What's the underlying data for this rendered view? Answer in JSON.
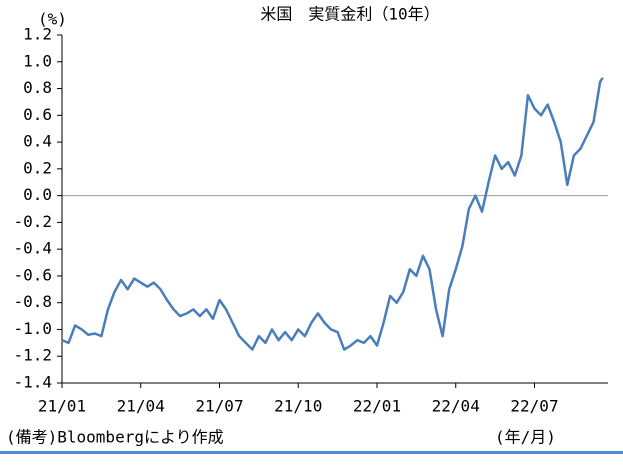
{
  "chart_data": {
    "type": "line",
    "title": "米国　実質金利（10年）",
    "y_label": "(%)",
    "x_label": "(年/月)",
    "source": "(備考)Bloombergにより作成",
    "x": [
      0,
      0.25,
      0.5,
      0.75,
      1,
      1.25,
      1.5,
      1.75,
      2,
      2.25,
      2.5,
      2.75,
      3,
      3.25,
      3.5,
      3.75,
      4,
      4.25,
      4.5,
      4.75,
      5,
      5.25,
      5.5,
      5.75,
      6,
      6.25,
      6.5,
      6.75,
      7,
      7.25,
      7.5,
      7.75,
      8,
      8.25,
      8.5,
      8.75,
      9,
      9.25,
      9.5,
      9.75,
      10,
      10.25,
      10.5,
      10.75,
      11,
      11.25,
      11.5,
      11.75,
      12,
      12.25,
      12.5,
      12.75,
      13,
      13.25,
      13.5,
      13.75,
      14,
      14.25,
      14.5,
      14.75,
      15,
      15.25,
      15.5,
      15.75,
      16,
      16.25,
      16.5,
      16.75,
      17,
      17.25,
      17.5,
      17.75,
      18,
      18.25,
      18.5,
      18.75,
      19,
      19.25,
      19.5,
      19.75,
      20,
      20.25,
      20.5,
      20.6
    ],
    "series": [
      {
        "name": "実質金利",
        "color": "#4a7ebb",
        "values": [
          -1.08,
          -1.1,
          -0.97,
          -1.0,
          -1.04,
          -1.03,
          -1.05,
          -0.85,
          -0.72,
          -0.63,
          -0.7,
          -0.62,
          -0.65,
          -0.68,
          -0.65,
          -0.7,
          -0.78,
          -0.85,
          -0.9,
          -0.88,
          -0.85,
          -0.9,
          -0.85,
          -0.92,
          -0.78,
          -0.85,
          -0.95,
          -1.05,
          -1.1,
          -1.15,
          -1.05,
          -1.1,
          -1.0,
          -1.08,
          -1.02,
          -1.08,
          -1.0,
          -1.05,
          -0.95,
          -0.88,
          -0.95,
          -1.0,
          -1.02,
          -1.15,
          -1.12,
          -1.08,
          -1.1,
          -1.05,
          -1.12,
          -0.95,
          -0.75,
          -0.8,
          -0.72,
          -0.55,
          -0.6,
          -0.45,
          -0.55,
          -0.85,
          -1.05,
          -0.7,
          -0.55,
          -0.38,
          -0.1,
          0.0,
          -0.12,
          0.1,
          0.3,
          0.2,
          0.25,
          0.15,
          0.3,
          0.75,
          0.65,
          0.6,
          0.68,
          0.55,
          0.4,
          0.08,
          0.3,
          0.35,
          0.45,
          0.55,
          0.85,
          0.88
        ]
      }
    ],
    "xlim": [
      0,
      20.8
    ],
    "xticks": [
      {
        "value": 0,
        "label": "21/01"
      },
      {
        "value": 3,
        "label": "21/04"
      },
      {
        "value": 6,
        "label": "21/07"
      },
      {
        "value": 9,
        "label": "21/10"
      },
      {
        "value": 12,
        "label": "22/01"
      },
      {
        "value": 15,
        "label": "22/04"
      },
      {
        "value": 18,
        "label": "22/07"
      }
    ],
    "ylim": [
      -1.4,
      1.2
    ],
    "yticks": [
      1.2,
      {
        "value": 1.0,
        "label": "1.0"
      },
      0.8,
      0.6,
      0.4,
      0.2,
      {
        "value": 0,
        "label": "0.0"
      },
      -0.2,
      -0.4,
      -0.6,
      -0.8,
      {
        "value": -1.0,
        "label": "-1.0"
      },
      -1.2,
      -1.4
    ]
  }
}
